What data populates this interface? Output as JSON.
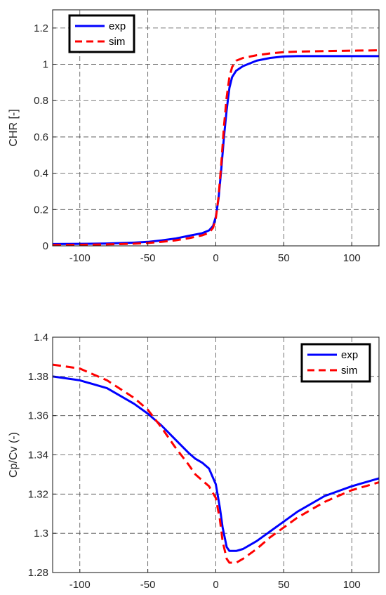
{
  "chart_data": [
    {
      "type": "line",
      "title": "",
      "xlabel": "",
      "ylabel": "CHR [-]",
      "xlim": [
        -120,
        120
      ],
      "ylim": [
        0,
        1.3
      ],
      "xticks": [
        -100,
        -50,
        0,
        50,
        100
      ],
      "yticks": [
        0,
        0.2,
        0.4,
        0.6,
        0.8,
        1,
        1.2
      ],
      "grid": true,
      "legend_position": "top-left",
      "series": [
        {
          "name": "exp",
          "color": "#0000ff",
          "style": "solid",
          "x": [
            -120,
            -100,
            -80,
            -60,
            -50,
            -40,
            -30,
            -20,
            -10,
            -5,
            -2,
            0,
            2,
            4,
            6,
            8,
            10,
            12,
            15,
            20,
            30,
            40,
            50,
            60,
            80,
            100,
            120
          ],
          "y": [
            0.01,
            0.011,
            0.013,
            0.018,
            0.022,
            0.03,
            0.04,
            0.055,
            0.07,
            0.085,
            0.11,
            0.16,
            0.26,
            0.42,
            0.6,
            0.75,
            0.87,
            0.93,
            0.965,
            0.99,
            1.02,
            1.035,
            1.043,
            1.045,
            1.045,
            1.045,
            1.045
          ]
        },
        {
          "name": "sim",
          "color": "#ff0000",
          "style": "dashed",
          "x": [
            -120,
            -100,
            -80,
            -60,
            -50,
            -40,
            -30,
            -20,
            -10,
            -5,
            -2,
            0,
            2,
            4,
            6,
            8,
            10,
            12,
            15,
            20,
            30,
            40,
            50,
            60,
            80,
            100,
            120
          ],
          "y": [
            0.005,
            0.006,
            0.008,
            0.012,
            0.016,
            0.022,
            0.03,
            0.042,
            0.058,
            0.072,
            0.1,
            0.15,
            0.27,
            0.45,
            0.66,
            0.82,
            0.93,
            0.985,
            1.02,
            1.035,
            1.05,
            1.06,
            1.067,
            1.07,
            1.073,
            1.075,
            1.077
          ]
        }
      ]
    },
    {
      "type": "line",
      "title": "",
      "xlabel": "",
      "ylabel": "Cp/Cv (-)",
      "xlim": [
        -120,
        120
      ],
      "ylim": [
        1.28,
        1.4
      ],
      "xticks": [
        -100,
        -50,
        0,
        50,
        100
      ],
      "yticks": [
        1.28,
        1.3,
        1.32,
        1.34,
        1.36,
        1.38,
        1.4
      ],
      "grid": true,
      "legend_position": "top-right",
      "series": [
        {
          "name": "exp",
          "color": "#0000ff",
          "style": "solid",
          "x": [
            -120,
            -100,
            -80,
            -60,
            -50,
            -40,
            -30,
            -20,
            -15,
            -10,
            -5,
            0,
            3,
            5,
            8,
            10,
            15,
            20,
            30,
            40,
            50,
            60,
            80,
            100,
            120
          ],
          "y": [
            1.38,
            1.378,
            1.374,
            1.366,
            1.361,
            1.355,
            1.348,
            1.341,
            1.338,
            1.336,
            1.333,
            1.325,
            1.313,
            1.303,
            1.293,
            1.291,
            1.291,
            1.292,
            1.296,
            1.301,
            1.306,
            1.311,
            1.319,
            1.324,
            1.328
          ]
        },
        {
          "name": "sim",
          "color": "#ff0000",
          "style": "dashed",
          "x": [
            -120,
            -100,
            -80,
            -60,
            -50,
            -40,
            -30,
            -20,
            -15,
            -10,
            -5,
            0,
            3,
            5,
            8,
            10,
            15,
            20,
            30,
            40,
            50,
            60,
            80,
            100,
            120
          ],
          "y": [
            1.386,
            1.384,
            1.378,
            1.369,
            1.363,
            1.354,
            1.344,
            1.335,
            1.33,
            1.327,
            1.324,
            1.318,
            1.307,
            1.296,
            1.287,
            1.285,
            1.285,
            1.287,
            1.292,
            1.298,
            1.303,
            1.308,
            1.316,
            1.322,
            1.326
          ]
        }
      ]
    }
  ]
}
